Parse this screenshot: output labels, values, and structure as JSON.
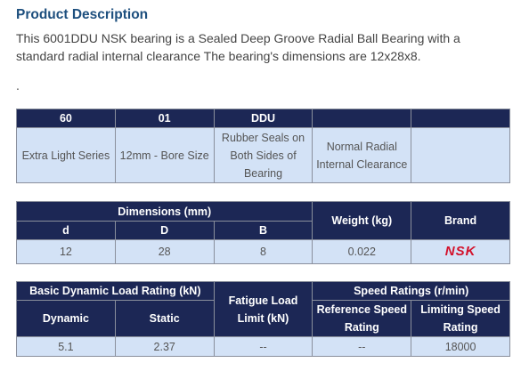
{
  "title": "Product Description",
  "description": [
    "This 6001DDU NSK bearing is a Sealed Deep Groove Radial Ball Bearing with a",
    "standard radial internal clearance The bearing's dimensions are 12x28x8."
  ],
  "dot": ".",
  "code_table": {
    "header": [
      "60",
      "01",
      "DDU",
      "",
      ""
    ],
    "row": [
      "Extra Light Series",
      "12mm - Bore Size",
      "Rubber Seals on Both Sides of Bearing",
      "Normal Radial Internal Clearance",
      ""
    ]
  },
  "dimension_table": {
    "group": "Dimensions (mm)",
    "weight": "Weight (kg)",
    "brand": "Brand",
    "sub": [
      "d",
      "D",
      "B"
    ],
    "row": [
      "12",
      "28",
      "8",
      "0.022",
      "NSK"
    ]
  },
  "rating_table": {
    "dynamic_group": "Basic Dynamic Load Rating (kN)",
    "fatigue": "Fatigue Load Limit (kN)",
    "speed_group": "Speed Ratings (r/min)",
    "sub": [
      "Dynamic",
      "Static",
      "Reference Speed Rating",
      "Limiting Speed Rating"
    ],
    "row": [
      "5.1",
      "2.37",
      "--",
      "--",
      "18000"
    ]
  }
}
